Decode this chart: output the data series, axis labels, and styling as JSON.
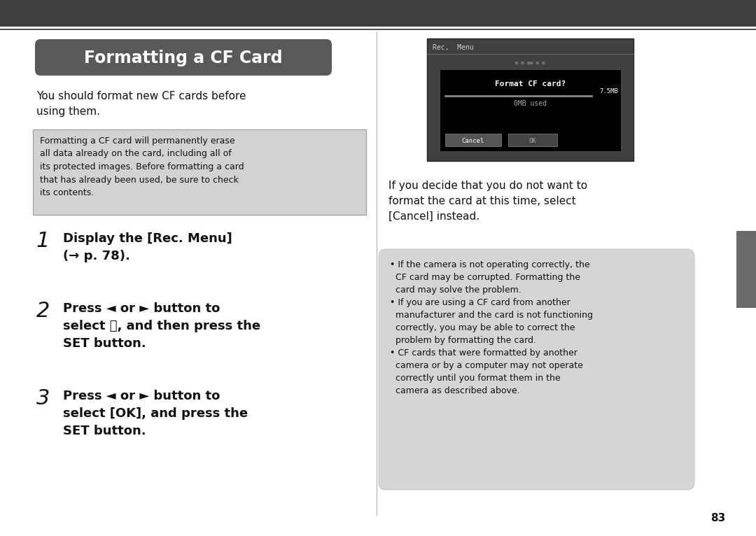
{
  "bg_color": "#ffffff",
  "top_bar_color": "#404040",
  "border_line_color": "#555555",
  "title_bg_color": "#595959",
  "title_text": "Formatting a CF Card",
  "title_text_color": "#ffffff",
  "body_text_color": "#111111",
  "warning_box_bg": "#d2d2d2",
  "warning_box_border": "#999999",
  "warning_text": "Formatting a CF card will permanently erase\nall data already on the card, including all of\nits protected images. Before formatting a card\nthat has already been used, be sure to check\nits contents.",
  "intro_text": "You should format new CF cards before\nusing them.",
  "step1_num": "1",
  "step1_bold": "Display the [Rec. Menu]\n(→ p. 78).",
  "step2_num": "2",
  "step2_bold": "Press ◄ or ► button to\nselect ⓘ, and then press the\nSET button.",
  "step3_num": "3",
  "step3_bold": "Press ◄ or ► button to\nselect [OK], and press the\nSET button.",
  "right_para1_line1": "If you decide that you do not want to",
  "right_para1_line2": "format the card at this time, select",
  "right_para1_line3": "[Cancel] instead.",
  "right_box_color": "#d5d5d5",
  "right_box_bullet1_1": "• If the camera is not operating correctly, the",
  "right_box_bullet1_2": "  CF card may be corrupted. Formatting the",
  "right_box_bullet1_3": "  card may solve the problem.",
  "right_box_bullet2_1": "• If you are using a CF card from another",
  "right_box_bullet2_2": "  manufacturer and the card is not functioning",
  "right_box_bullet2_3": "  correctly, you may be able to correct the",
  "right_box_bullet2_4": "  problem by formatting the card.",
  "right_box_bullet3_1": "• CF cards that were formatted by another",
  "right_box_bullet3_2": "  camera or by a computer may not operate",
  "right_box_bullet3_3": "  correctly until you format them in the",
  "right_box_bullet3_4": "  camera as described above.",
  "page_number": "83",
  "sidebar_color": "#6a6a6a",
  "cam_outer_bg": "#404040",
  "cam_title": "Rec.  Menu",
  "cam_inner_bg": "#000000",
  "cam_text_format": "Format CF card?",
  "cam_text_size": "7.5MB",
  "cam_text_used": "0MB used",
  "cam_btn_cancel": "Cancel",
  "cam_btn_ok": "OK"
}
